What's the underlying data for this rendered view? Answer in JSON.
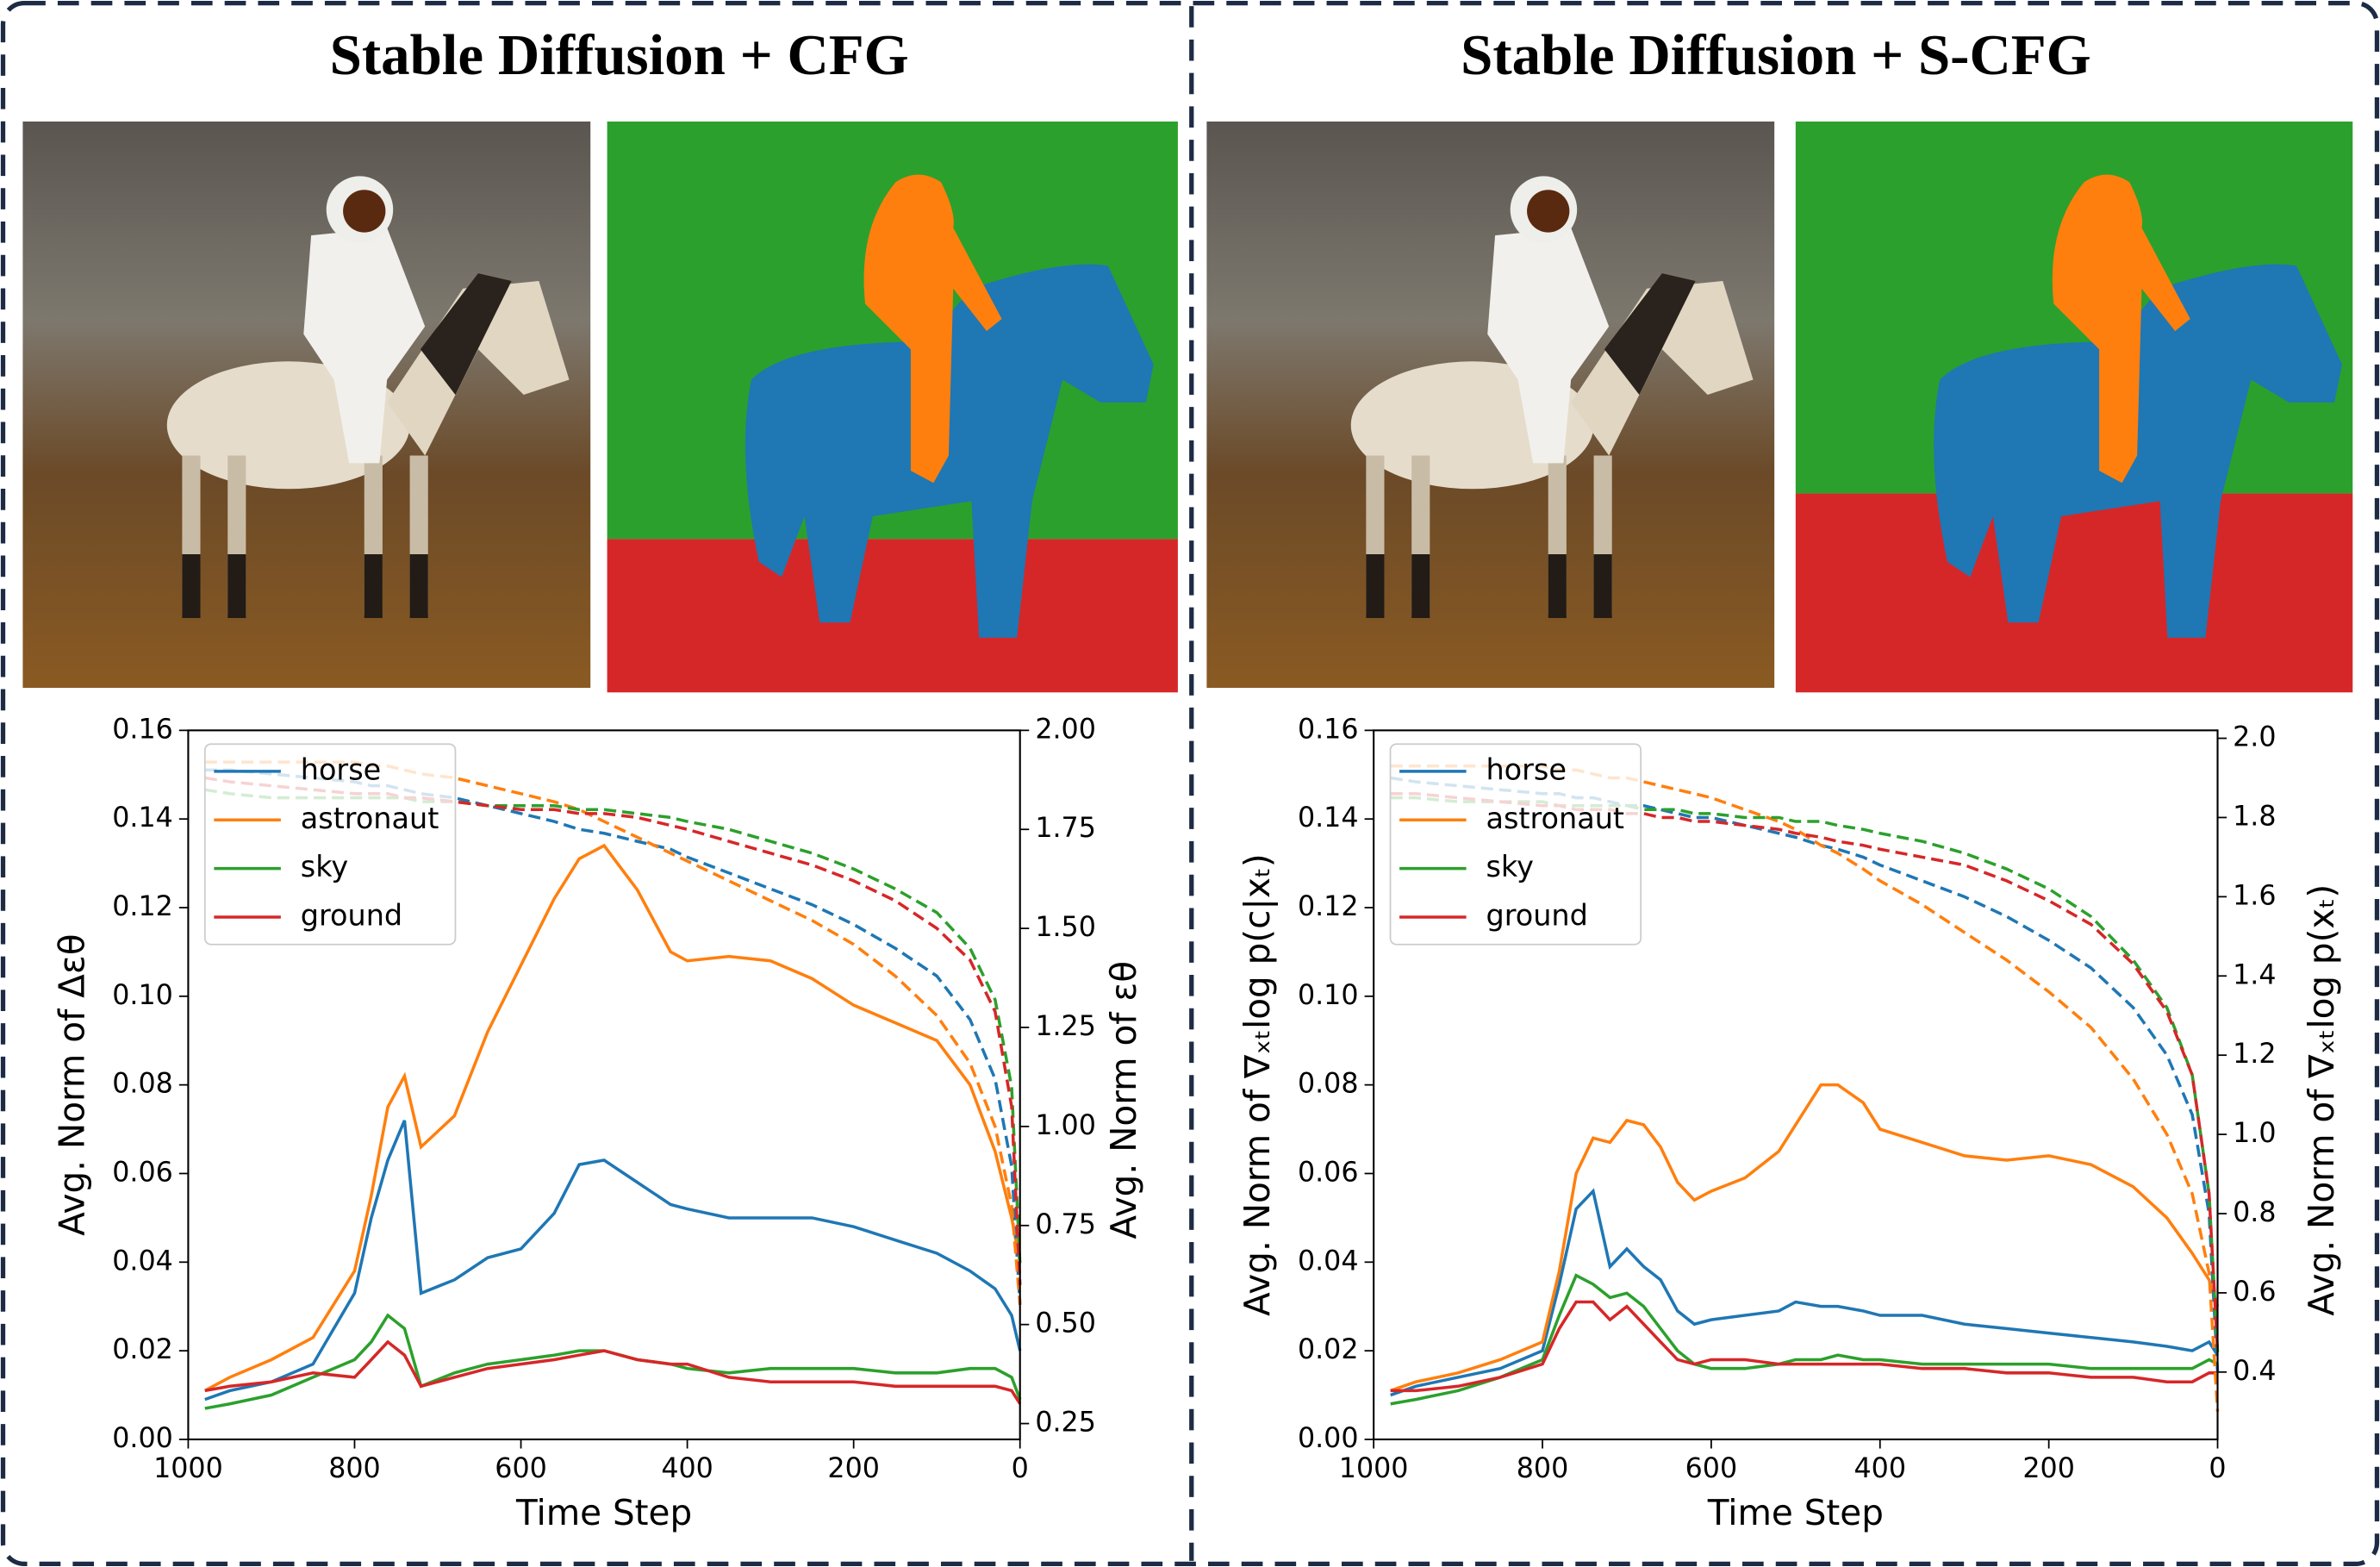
{
  "chart_data": [
    {
      "type": "line",
      "title": "Stable Diffusion + CFG",
      "xlabel": "Time Step",
      "ylabel": "Avg. Norm of Δεθ",
      "y2label": "Avg. Norm of εθ",
      "legend": "upper left",
      "x": [
        980,
        950,
        900,
        850,
        800,
        780,
        760,
        740,
        720,
        680,
        640,
        600,
        560,
        530,
        500,
        460,
        420,
        400,
        350,
        300,
        250,
        200,
        150,
        100,
        60,
        30,
        10,
        0
      ],
      "xlim": [
        1000,
        0
      ],
      "xticks": [
        1000,
        800,
        600,
        400,
        200,
        0
      ],
      "ylim": [
        0,
        0.16
      ],
      "yticks": [
        {
          "value": 0,
          "label": "0.00"
        },
        {
          "value": 0.02,
          "label": "0.02"
        },
        {
          "value": 0.04,
          "label": "0.04"
        },
        {
          "value": 0.06,
          "label": "0.06"
        },
        {
          "value": 0.08,
          "label": "0.08"
        },
        {
          "value": 0.1,
          "label": "0.10"
        },
        {
          "value": 0.12,
          "label": "0.12"
        },
        {
          "value": 0.14,
          "label": "0.14"
        },
        {
          "value": 0.16,
          "label": "0.16"
        }
      ],
      "y2lim": [
        0.21,
        2.0
      ],
      "y2ticks": [
        {
          "value": 0.25,
          "label": "0.25"
        },
        {
          "value": 0.5,
          "label": "0.50"
        },
        {
          "value": 0.75,
          "label": "0.75"
        },
        {
          "value": 1,
          "label": "1.00"
        },
        {
          "value": 1.25,
          "label": "1.25"
        },
        {
          "value": 1.5,
          "label": "1.50"
        },
        {
          "value": 1.75,
          "label": "1.75"
        },
        {
          "value": 2,
          "label": "2.00"
        }
      ],
      "series": [
        {
          "name": "horse",
          "color": "#1f77b4",
          "values": [
            0.009,
            0.011,
            0.013,
            0.017,
            0.033,
            0.05,
            0.063,
            0.072,
            0.033,
            0.036,
            0.041,
            0.043,
            0.051,
            0.062,
            0.063,
            0.058,
            0.053,
            0.052,
            0.05,
            0.05,
            0.05,
            0.048,
            0.045,
            0.042,
            0.038,
            0.034,
            0.028,
            0.02
          ]
        },
        {
          "name": "astronaut",
          "color": "#ff7f0e",
          "values": [
            0.011,
            0.014,
            0.018,
            0.023,
            0.038,
            0.055,
            0.075,
            0.082,
            0.066,
            0.073,
            0.092,
            0.107,
            0.122,
            0.131,
            0.134,
            0.124,
            0.11,
            0.108,
            0.109,
            0.108,
            0.104,
            0.098,
            0.094,
            0.09,
            0.08,
            0.065,
            0.05,
            0.04
          ]
        },
        {
          "name": "sky",
          "color": "#2ca02c",
          "values": [
            0.007,
            0.008,
            0.01,
            0.014,
            0.018,
            0.022,
            0.028,
            0.025,
            0.012,
            0.015,
            0.017,
            0.018,
            0.019,
            0.02,
            0.02,
            0.018,
            0.017,
            0.016,
            0.015,
            0.016,
            0.016,
            0.016,
            0.015,
            0.015,
            0.016,
            0.016,
            0.014,
            0.009
          ]
        },
        {
          "name": "ground",
          "color": "#d62728",
          "values": [
            0.011,
            0.012,
            0.013,
            0.015,
            0.014,
            0.018,
            0.022,
            0.019,
            0.012,
            0.014,
            0.016,
            0.017,
            0.018,
            0.019,
            0.02,
            0.018,
            0.017,
            0.017,
            0.014,
            0.013,
            0.013,
            0.013,
            0.012,
            0.012,
            0.012,
            0.012,
            0.011,
            0.008
          ]
        },
        {
          "color": "#1f77b4",
          "axis": "y2",
          "dash": true,
          "values": [
            1.9,
            1.9,
            1.89,
            1.88,
            1.87,
            1.86,
            1.86,
            1.85,
            1.84,
            1.83,
            1.81,
            1.79,
            1.77,
            1.75,
            1.74,
            1.72,
            1.7,
            1.68,
            1.64,
            1.6,
            1.56,
            1.51,
            1.45,
            1.38,
            1.27,
            1.12,
            0.9,
            0.55
          ]
        },
        {
          "color": "#ff7f0e",
          "axis": "y2",
          "dash": true,
          "values": [
            1.92,
            1.92,
            1.92,
            1.92,
            1.92,
            1.91,
            1.91,
            1.9,
            1.89,
            1.88,
            1.86,
            1.84,
            1.82,
            1.8,
            1.77,
            1.73,
            1.69,
            1.67,
            1.62,
            1.57,
            1.52,
            1.46,
            1.38,
            1.28,
            1.16,
            1.0,
            0.8,
            0.55
          ]
        },
        {
          "color": "#2ca02c",
          "axis": "y2",
          "dash": true,
          "values": [
            1.85,
            1.84,
            1.83,
            1.83,
            1.83,
            1.83,
            1.83,
            1.83,
            1.82,
            1.82,
            1.81,
            1.81,
            1.81,
            1.8,
            1.8,
            1.79,
            1.78,
            1.77,
            1.75,
            1.72,
            1.69,
            1.65,
            1.6,
            1.54,
            1.45,
            1.32,
            1.1,
            0.65
          ]
        },
        {
          "color": "#d62728",
          "axis": "y2",
          "dash": true,
          "values": [
            1.88,
            1.87,
            1.86,
            1.85,
            1.84,
            1.84,
            1.84,
            1.83,
            1.83,
            1.82,
            1.81,
            1.8,
            1.8,
            1.79,
            1.79,
            1.78,
            1.76,
            1.75,
            1.72,
            1.69,
            1.66,
            1.62,
            1.57,
            1.5,
            1.42,
            1.29,
            1.05,
            0.6
          ]
        }
      ]
    },
    {
      "type": "line",
      "title": "Stable Diffusion + S-CFG",
      "xlabel": "Time Step",
      "ylabel": "Avg. Norm of ∇ₓₜlog p(c|xₜ)",
      "y2label": "Avg. Norm of ∇ₓₜlog p(xₜ)",
      "legend": "upper left",
      "x": [
        980,
        950,
        900,
        850,
        800,
        780,
        760,
        740,
        720,
        700,
        680,
        660,
        640,
        620,
        600,
        560,
        520,
        500,
        470,
        450,
        420,
        400,
        350,
        300,
        250,
        200,
        150,
        100,
        60,
        30,
        10,
        0
      ],
      "xlim": [
        1000,
        0
      ],
      "xticks": [
        1000,
        800,
        600,
        400,
        200,
        0
      ],
      "ylim": [
        0,
        0.16
      ],
      "yticks": [
        {
          "value": 0,
          "label": "0.00"
        },
        {
          "value": 0.02,
          "label": "0.02"
        },
        {
          "value": 0.04,
          "label": "0.04"
        },
        {
          "value": 0.06,
          "label": "0.06"
        },
        {
          "value": 0.08,
          "label": "0.08"
        },
        {
          "value": 0.1,
          "label": "0.10"
        },
        {
          "value": 0.12,
          "label": "0.12"
        },
        {
          "value": 0.14,
          "label": "0.14"
        },
        {
          "value": 0.16,
          "label": "0.16"
        }
      ],
      "y2lim": [
        0.23,
        2.02
      ],
      "y2ticks": [
        {
          "value": 0.4,
          "label": "0.4"
        },
        {
          "value": 0.6,
          "label": "0.6"
        },
        {
          "value": 0.8,
          "label": "0.8"
        },
        {
          "value": 1,
          "label": "1.0"
        },
        {
          "value": 1.2,
          "label": "1.2"
        },
        {
          "value": 1.4,
          "label": "1.4"
        },
        {
          "value": 1.6,
          "label": "1.6"
        },
        {
          "value": 1.8,
          "label": "1.8"
        },
        {
          "value": 2,
          "label": "2.0"
        }
      ],
      "series": [
        {
          "name": "horse",
          "color": "#1f77b4",
          "values": [
            0.01,
            0.012,
            0.014,
            0.016,
            0.02,
            0.035,
            0.052,
            0.056,
            0.039,
            0.043,
            0.039,
            0.036,
            0.029,
            0.026,
            0.027,
            0.028,
            0.029,
            0.031,
            0.03,
            0.03,
            0.029,
            0.028,
            0.028,
            0.026,
            0.025,
            0.024,
            0.023,
            0.022,
            0.021,
            0.02,
            0.022,
            0.019
          ]
        },
        {
          "name": "astronaut",
          "color": "#ff7f0e",
          "values": [
            0.011,
            0.013,
            0.015,
            0.018,
            0.022,
            0.038,
            0.06,
            0.068,
            0.067,
            0.072,
            0.071,
            0.066,
            0.058,
            0.054,
            0.056,
            0.059,
            0.065,
            0.071,
            0.08,
            0.08,
            0.076,
            0.07,
            0.067,
            0.064,
            0.063,
            0.064,
            0.062,
            0.057,
            0.05,
            0.042,
            0.036,
            0.03
          ]
        },
        {
          "name": "sky",
          "color": "#2ca02c",
          "values": [
            0.008,
            0.009,
            0.011,
            0.014,
            0.018,
            0.028,
            0.037,
            0.035,
            0.032,
            0.033,
            0.03,
            0.025,
            0.02,
            0.017,
            0.016,
            0.016,
            0.017,
            0.018,
            0.018,
            0.019,
            0.018,
            0.018,
            0.017,
            0.017,
            0.017,
            0.017,
            0.016,
            0.016,
            0.016,
            0.016,
            0.018,
            0.017
          ]
        },
        {
          "name": "ground",
          "color": "#d62728",
          "values": [
            0.011,
            0.011,
            0.012,
            0.014,
            0.017,
            0.025,
            0.031,
            0.031,
            0.027,
            0.03,
            0.026,
            0.022,
            0.018,
            0.017,
            0.018,
            0.018,
            0.017,
            0.017,
            0.017,
            0.017,
            0.017,
            0.017,
            0.016,
            0.016,
            0.015,
            0.015,
            0.014,
            0.014,
            0.013,
            0.013,
            0.015,
            0.015
          ]
        },
        {
          "color": "#1f77b4",
          "axis": "y2",
          "dash": true,
          "values": [
            1.9,
            1.89,
            1.88,
            1.87,
            1.86,
            1.86,
            1.85,
            1.85,
            1.84,
            1.83,
            1.83,
            1.82,
            1.81,
            1.8,
            1.8,
            1.78,
            1.76,
            1.75,
            1.73,
            1.72,
            1.7,
            1.68,
            1.64,
            1.6,
            1.55,
            1.49,
            1.42,
            1.32,
            1.2,
            1.05,
            0.8,
            0.4
          ]
        },
        {
          "color": "#ff7f0e",
          "axis": "y2",
          "dash": true,
          "values": [
            1.93,
            1.93,
            1.93,
            1.93,
            1.93,
            1.92,
            1.92,
            1.91,
            1.9,
            1.9,
            1.89,
            1.88,
            1.87,
            1.86,
            1.85,
            1.82,
            1.79,
            1.77,
            1.73,
            1.71,
            1.67,
            1.64,
            1.58,
            1.51,
            1.44,
            1.36,
            1.27,
            1.14,
            1.0,
            0.85,
            0.65,
            0.3
          ]
        },
        {
          "color": "#2ca02c",
          "axis": "y2",
          "dash": true,
          "values": [
            1.85,
            1.85,
            1.84,
            1.84,
            1.84,
            1.83,
            1.83,
            1.83,
            1.83,
            1.83,
            1.82,
            1.82,
            1.82,
            1.81,
            1.81,
            1.8,
            1.8,
            1.79,
            1.79,
            1.78,
            1.77,
            1.76,
            1.74,
            1.71,
            1.67,
            1.62,
            1.55,
            1.44,
            1.32,
            1.15,
            0.85,
            0.45
          ]
        },
        {
          "color": "#d62728",
          "axis": "y2",
          "dash": true,
          "values": [
            1.86,
            1.86,
            1.85,
            1.84,
            1.83,
            1.83,
            1.82,
            1.82,
            1.82,
            1.81,
            1.81,
            1.8,
            1.8,
            1.79,
            1.79,
            1.78,
            1.77,
            1.76,
            1.75,
            1.74,
            1.73,
            1.72,
            1.7,
            1.68,
            1.64,
            1.59,
            1.53,
            1.43,
            1.31,
            1.15,
            0.85,
            0.45
          ]
        }
      ]
    }
  ]
}
